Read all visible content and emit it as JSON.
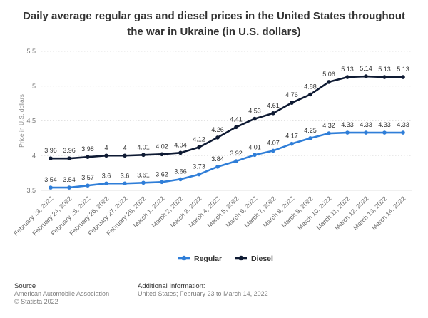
{
  "chart_data": {
    "type": "line",
    "title": "Daily average regular gas and diesel prices in the United States throughout the war in Ukraine (in U.S. dollars)",
    "xlabel": "",
    "ylabel": "Price in U.S. dollars",
    "ylim": [
      3.5,
      5.5
    ],
    "yticks": [
      "3.5",
      "4",
      "4.5",
      "5",
      "5.5"
    ],
    "grid": true,
    "legend_position": "bottom-center",
    "categories": [
      "February 23, 2022",
      "February 24, 2022",
      "February 25, 2022",
      "February 26, 2022",
      "February 27, 2022",
      "February 28, 2022",
      "March 1, 2022",
      "March 2, 2022",
      "March 3, 2022",
      "March 4, 2022",
      "March 5, 2022",
      "March 6, 2022",
      "March 7, 2022",
      "March 8, 2022",
      "March 9, 2022",
      "March 10, 2022",
      "March 11, 2022",
      "March 12, 2022",
      "March 13, 2022",
      "March 14, 2022"
    ],
    "series": [
      {
        "name": "Regular",
        "color": "#2f7ed8",
        "values": [
          3.54,
          3.54,
          3.57,
          3.6,
          3.6,
          3.61,
          3.62,
          3.66,
          3.73,
          3.84,
          3.92,
          4.01,
          4.07,
          4.17,
          4.25,
          4.32,
          4.33,
          4.33,
          4.33,
          4.33
        ],
        "labels": [
          "3.54",
          "3.54",
          "3.57",
          "3.6",
          "3.6",
          "3.61",
          "3.62",
          "3.66",
          "3.73",
          "3.84",
          "3.92",
          "4.01",
          "4.07",
          "4.17",
          "4.25",
          "4.32",
          "4.33",
          "4.33",
          "4.33",
          "4.33"
        ]
      },
      {
        "name": "Diesel",
        "color": "#0e1a33",
        "values": [
          3.96,
          3.96,
          3.98,
          4,
          4,
          4.01,
          4.02,
          4.04,
          4.12,
          4.26,
          4.41,
          4.53,
          4.61,
          4.76,
          4.88,
          5.06,
          5.13,
          5.14,
          5.13,
          5.13
        ],
        "labels": [
          "3.96",
          "3.96",
          "3.98",
          "4",
          "4",
          "4.01",
          "4.02",
          "4.04",
          "4.12",
          "4.26",
          "4.41",
          "4.53",
          "4.61",
          "4.76",
          "4.88",
          "5.06",
          "5.13",
          "5.14",
          "5.13",
          "5.13"
        ]
      }
    ]
  },
  "footer": {
    "source_heading": "Source",
    "source_lines": [
      "American Automobile Association",
      "© Statista 2022"
    ],
    "info_heading": "Additional Information:",
    "info_line": "United States; February 23 to March 14, 2022"
  }
}
